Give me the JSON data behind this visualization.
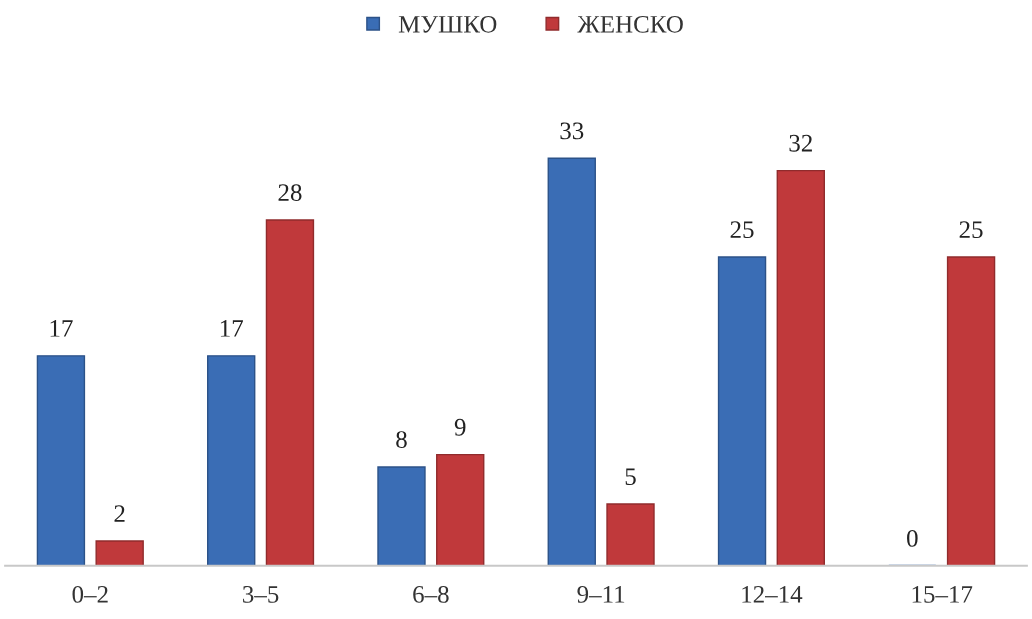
{
  "chart_data": {
    "type": "bar",
    "categories": [
      "0–2",
      "3–5",
      "6–8",
      "9–11",
      "12–14",
      "15–17"
    ],
    "series": [
      {
        "name": "МУШКО",
        "color": "#3a6db5",
        "values": [
          17,
          17,
          8,
          33,
          25,
          0
        ]
      },
      {
        "name": "ЖЕНСКО",
        "color": "#c0393b",
        "values": [
          2,
          28,
          9,
          5,
          32,
          25
        ]
      }
    ],
    "data_labels": true,
    "legend": "top",
    "grid": false
  }
}
